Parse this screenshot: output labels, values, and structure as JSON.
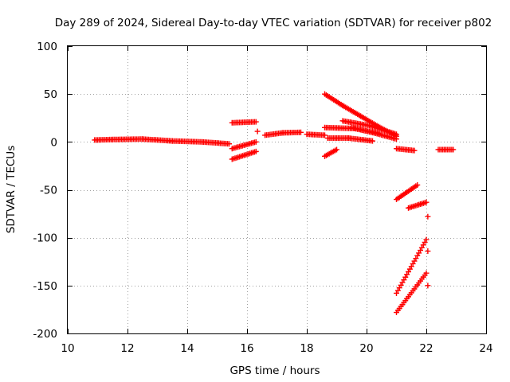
{
  "chart_data": {
    "type": "scatter",
    "title": "Day 289 of 2024, Sidereal Day-to-day VTEC variation (SDTVAR) for receiver p802",
    "xlabel": "GPS time / hours",
    "ylabel": "SDTVAR / TECUs",
    "xlim": [
      10,
      24
    ],
    "ylim": [
      -200,
      100
    ],
    "xticks": [
      10,
      12,
      14,
      16,
      18,
      20,
      22,
      24
    ],
    "yticks": [
      100,
      50,
      0,
      -50,
      -100,
      -150,
      -200
    ],
    "grid": true,
    "marker": "+",
    "color": "#ff0000",
    "series": [
      {
        "name": "arc-1",
        "segments": [
          [
            10.9,
            2,
            11.5,
            2.5
          ],
          [
            11.5,
            2.5,
            12.5,
            3
          ],
          [
            12.5,
            3,
            13.5,
            1
          ],
          [
            13.5,
            1,
            14.5,
            0
          ],
          [
            14.5,
            0,
            15.4,
            -2
          ]
        ]
      },
      {
        "name": "arc-2",
        "segments": [
          [
            15.5,
            20,
            16.3,
            21
          ]
        ]
      },
      {
        "name": "arc-3",
        "segments": [
          [
            15.5,
            -7,
            16.3,
            0
          ]
        ]
      },
      {
        "name": "arc-4",
        "segments": [
          [
            15.5,
            -18,
            16.3,
            -10
          ]
        ]
      },
      {
        "name": "arc-5",
        "segments": [
          [
            16.6,
            7,
            17.2,
            9.5
          ],
          [
            17.2,
            9.5,
            17.8,
            10
          ]
        ]
      },
      {
        "name": "arc-6",
        "segments": [
          [
            18.0,
            8,
            18.6,
            7
          ]
        ]
      },
      {
        "name": "arc-7",
        "segments": [
          [
            18.6,
            15,
            19.6,
            14
          ],
          [
            19.6,
            14,
            20.4,
            9
          ]
        ]
      },
      {
        "name": "arc-8",
        "segments": [
          [
            18.7,
            4,
            19.4,
            4
          ],
          [
            19.4,
            4,
            20.2,
            1
          ]
        ]
      },
      {
        "name": "arc-9",
        "segments": [
          [
            18.6,
            50,
            19.2,
            38
          ],
          [
            19.2,
            38,
            19.8,
            27
          ],
          [
            19.8,
            27,
            20.4,
            16
          ],
          [
            20.4,
            16,
            21.0,
            6
          ]
        ]
      },
      {
        "name": "arc-10",
        "segments": [
          [
            19.2,
            22,
            20.1,
            17
          ],
          [
            20.1,
            17,
            21.0,
            8
          ]
        ]
      },
      {
        "name": "arc-11",
        "segments": [
          [
            19.5,
            15,
            20.3,
            9
          ],
          [
            20.3,
            9,
            21.0,
            3
          ]
        ]
      },
      {
        "name": "arc-12",
        "segments": [
          [
            18.6,
            -15,
            19.0,
            -8
          ]
        ]
      },
      {
        "name": "arc-13",
        "segments": [
          [
            21.0,
            -7,
            21.6,
            -9
          ]
        ]
      },
      {
        "name": "arc-14",
        "segments": [
          [
            22.4,
            -8,
            22.9,
            -8
          ]
        ]
      },
      {
        "name": "arc-15",
        "segments": [
          [
            21.0,
            -60,
            21.7,
            -45
          ]
        ]
      },
      {
        "name": "arc-16",
        "segments": [
          [
            21.4,
            -69,
            22.0,
            -63
          ]
        ]
      },
      {
        "name": "arc-17",
        "segments": [
          [
            21.0,
            -158,
            22.0,
            -102
          ]
        ]
      },
      {
        "name": "arc-18",
        "segments": [
          [
            21.0,
            -178,
            22.0,
            -137
          ]
        ]
      }
    ],
    "points": [
      {
        "x": 16.35,
        "y": 11
      },
      {
        "x": 22.05,
        "y": -78
      },
      {
        "x": 22.05,
        "y": -114
      },
      {
        "x": 22.05,
        "y": -150
      }
    ]
  }
}
